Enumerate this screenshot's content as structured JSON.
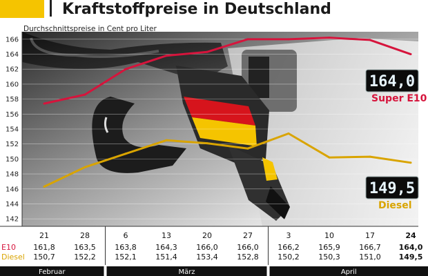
{
  "header": {
    "title": "Kraftstoffpreise in Deutschland",
    "accent_color": "#f5c400"
  },
  "chart_data": {
    "type": "line",
    "subtitle": "Durchschnittspreise in Cent pro Liter",
    "y_ticks": [
      142,
      144,
      146,
      148,
      150,
      152,
      154,
      156,
      158,
      160,
      162,
      164,
      166
    ],
    "ylim": [
      141,
      167
    ],
    "x": [
      "21",
      "28",
      "6",
      "13",
      "20",
      "27",
      "3",
      "10",
      "17",
      "24"
    ],
    "months": [
      {
        "label": "Februar",
        "from": 0,
        "to": 1
      },
      {
        "label": "März",
        "from": 2,
        "to": 5
      },
      {
        "label": "April",
        "from": 6,
        "to": 9
      }
    ],
    "series": [
      {
        "name": "Super E10",
        "row_label": "E10",
        "color": "#d6143c",
        "values": [
          161.8,
          163.5,
          163.8,
          164.3,
          166.0,
          166.0,
          166.2,
          165.9,
          166.7,
          164.0
        ],
        "value_labels": [
          "161,8",
          "163,5",
          "163,8",
          "164,3",
          "166,0",
          "166,0",
          "166,2",
          "165,9",
          "166,7",
          "164,0"
        ],
        "plot_values": [
          157.4,
          158.6,
          162.0,
          163.8,
          164.3,
          166.0,
          166.0,
          166.2,
          165.9,
          164.0
        ],
        "display": "164,0"
      },
      {
        "name": "Diesel",
        "row_label": "Diesel",
        "color": "#d9a400",
        "values": [
          150.7,
          152.2,
          152.1,
          151.4,
          153.4,
          152.8,
          150.2,
          150.3,
          151.0,
          149.5
        ],
        "value_labels": [
          "150,7",
          "152,2",
          "152,1",
          "151,4",
          "153,4",
          "152,8",
          "150,2",
          "150,3",
          "151,0",
          "149,5"
        ],
        "plot_values": [
          146.3,
          148.9,
          150.7,
          152.5,
          152.1,
          151.4,
          153.4,
          150.2,
          150.3,
          149.5
        ],
        "display": "149,5"
      }
    ],
    "highlight_index": 9
  }
}
